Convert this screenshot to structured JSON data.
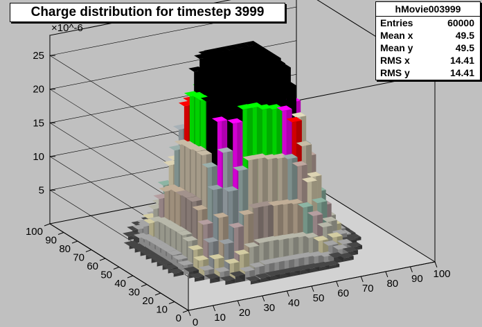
{
  "title": "Charge distribution for timestep 3999",
  "stats": {
    "name": "hMovie003999",
    "rows": [
      {
        "label": "Entries",
        "value": "60000"
      },
      {
        "label": "Mean x",
        "value": "49.5"
      },
      {
        "label": "Mean y",
        "value": "49.5"
      },
      {
        "label": "RMS x",
        "value": "14.41"
      },
      {
        "label": "RMS y",
        "value": "14.41"
      }
    ]
  },
  "chart_data": {
    "type": "lego",
    "title": "Charge distribution for timestep 3999",
    "x_range": [
      0,
      100
    ],
    "y_range": [
      0,
      100
    ],
    "z_range": [
      0,
      28
    ],
    "z_multiplier": "×10^-6",
    "x_ticks": [
      0,
      10,
      20,
      30,
      40,
      50,
      60,
      70,
      80,
      90,
      100
    ],
    "y_ticks": [
      0,
      10,
      20,
      30,
      40,
      50,
      60,
      70,
      80,
      90,
      100
    ],
    "z_ticks": [
      5,
      10,
      15,
      20,
      25
    ],
    "peaks": [
      {
        "x": 40,
        "y": 40,
        "z": 24
      },
      {
        "x": 60,
        "y": 40,
        "z": 22
      },
      {
        "x": 40,
        "y": 60,
        "z": 23
      },
      {
        "x": 60,
        "y": 60,
        "z": 21
      }
    ],
    "palette": [
      "#464646",
      "#a5a5a5",
      "#d3cca2",
      "#b8b8aa",
      "#9aa0a4",
      "#b59ea0",
      "#8db5a4",
      "#c1ae97",
      "#a2928c",
      "#dcd3b3",
      "#95a4a8",
      "#bfa8a0",
      "#9ab0ac",
      "#c8bca6",
      "#a7b1b7",
      "#c6afa6",
      "#e2dcbe",
      "#ff0000",
      "#ff00ff",
      "#00ff00",
      "#000000"
    ]
  }
}
